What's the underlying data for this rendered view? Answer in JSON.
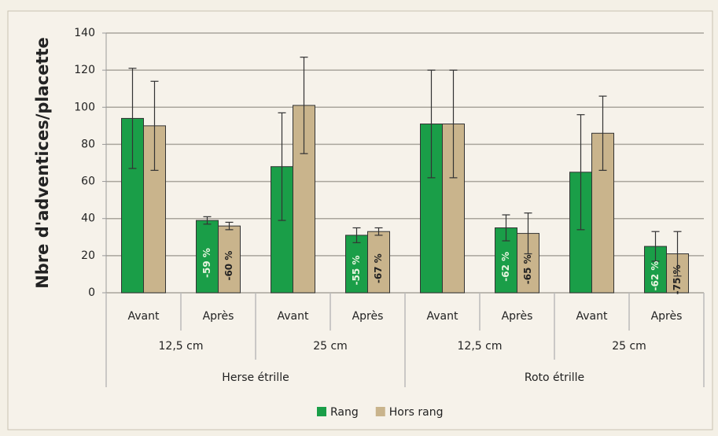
{
  "chart_data": {
    "type": "bar",
    "ylabel": "Nbre d'adventices/placette",
    "categories": [
      "Avant",
      "Après",
      "Avant",
      "Après",
      "Avant",
      "Après",
      "Avant",
      "Après"
    ],
    "category_groups": [
      "12,5 cm",
      "25 cm",
      "12,5 cm",
      "25 cm"
    ],
    "category_supergroups": [
      "Herse étrille",
      "Roto étrille"
    ],
    "series": [
      {
        "name": "Rang",
        "color": "#1a9e48",
        "values": [
          94,
          39,
          68,
          31,
          91,
          35,
          65,
          25
        ],
        "errors": [
          27,
          2,
          29,
          4,
          29,
          7,
          31,
          8
        ],
        "value_labels": [
          null,
          "-59 %",
          null,
          "-55 %",
          null,
          "-62 %",
          null,
          "-62 %"
        ]
      },
      {
        "name": "Hors rang",
        "color": "#c9b48c",
        "values": [
          90,
          36,
          101,
          33,
          91,
          32,
          86,
          21
        ],
        "errors": [
          24,
          2,
          26,
          2,
          29,
          11,
          20,
          12
        ],
        "value_labels": [
          null,
          "-60 %",
          null,
          "-67 %",
          null,
          "-65 %",
          null,
          "-75 %"
        ]
      }
    ],
    "ylim": [
      0,
      140
    ],
    "yticks": [
      0,
      20,
      40,
      60,
      80,
      100,
      120,
      140
    ],
    "grid": true,
    "legend": "bottom"
  }
}
